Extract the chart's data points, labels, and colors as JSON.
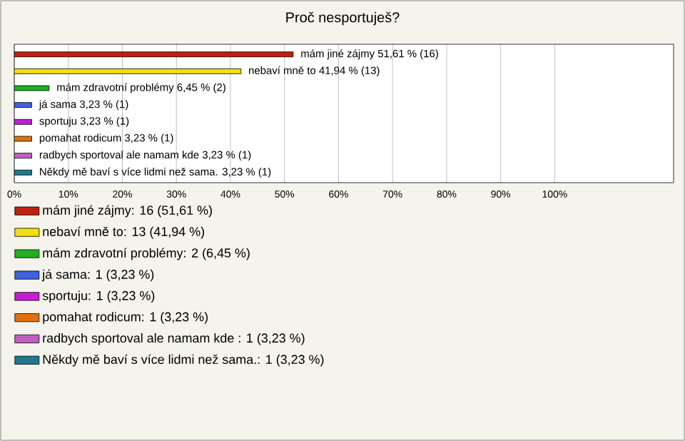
{
  "chart_data": {
    "type": "bar",
    "orientation": "horizontal",
    "title": "Proč nesportuješ?",
    "categories": [
      null,
      null,
      null,
      null,
      null,
      null,
      null,
      null
    ],
    "series": [
      {
        "name": "mám jiné zájmy: 16 (51,61 %)",
        "color": "#c0200e",
        "values": [
          51.61,
          null,
          null,
          null,
          null,
          null,
          null,
          null
        ],
        "value_labels": [
          "mám jiné zájmy 51,61 % (16)",
          null,
          null,
          null,
          null,
          null,
          null,
          null
        ]
      },
      {
        "name": "nebaví mně to: 13 (41,94 %)",
        "color": "#f0e010",
        "values": [
          null,
          41.94,
          null,
          null,
          null,
          null,
          null,
          null
        ],
        "value_labels": [
          null,
          "nebaví mně to 41,94 % (13)",
          null,
          null,
          null,
          null,
          null,
          null
        ]
      },
      {
        "name": "mám zdravotní problémy: 2 (6,45 %)",
        "color": "#20b020",
        "values": [
          null,
          null,
          6.45,
          null,
          null,
          null,
          null,
          null
        ],
        "value_labels": [
          null,
          null,
          "mám zdravotní problémy 6,45 % (2)",
          null,
          null,
          null,
          null,
          null
        ]
      },
      {
        "name": "já sama: 1 (3,23 %)",
        "color": "#4060e0",
        "values": [
          null,
          null,
          null,
          3.23,
          null,
          null,
          null,
          null
        ],
        "value_labels": [
          null,
          null,
          null,
          "já sama 3,23 % (1)",
          null,
          null,
          null,
          null
        ]
      },
      {
        "name": "sportuju: 1 (3,23 %)",
        "color": "#c020d0",
        "values": [
          null,
          null,
          null,
          null,
          3.23,
          null,
          null,
          null
        ],
        "value_labels": [
          null,
          null,
          null,
          null,
          "sportuju 3,23 % (1)",
          null,
          null,
          null
        ]
      },
      {
        "name": "pomahat rodicum: 1 (3,23 %)",
        "color": "#e07010",
        "values": [
          null,
          null,
          null,
          null,
          null,
          3.23,
          null,
          null
        ],
        "value_labels": [
          null,
          null,
          null,
          null,
          null,
          "pomahat rodicum 3,23 % (1)",
          null,
          null
        ]
      },
      {
        "name": "radbych sportoval ale namam kde : 1 (3,23 %)",
        "color": "#c060c0",
        "values": [
          null,
          null,
          null,
          null,
          null,
          null,
          3.23,
          null
        ],
        "value_labels": [
          null,
          null,
          null,
          null,
          null,
          null,
          "radbych sportoval ale namam kde  3,23 % (1)",
          null
        ]
      },
      {
        "name": "Někdy mě baví s více lidmi než sama.: 1 (3,23 %)",
        "color": "#207890",
        "values": [
          null,
          null,
          null,
          null,
          null,
          null,
          null,
          3.23
        ],
        "value_labels": [
          null,
          null,
          null,
          null,
          null,
          null,
          null,
          "Někdy mě baví s více lidmi než sama. 3,23 % (1)"
        ]
      }
    ],
    "xlim": [
      0,
      122
    ],
    "xticks": [
      {
        "value": 0,
        "label": "0%"
      },
      {
        "value": 10,
        "label": "10%"
      },
      {
        "value": 20,
        "label": "20%"
      },
      {
        "value": 30,
        "label": "30%"
      },
      {
        "value": 40,
        "label": "40%"
      },
      {
        "value": 50,
        "label": "50%"
      },
      {
        "value": 60,
        "label": "60%"
      },
      {
        "value": 70,
        "label": "70%"
      },
      {
        "value": 80,
        "label": "80%"
      },
      {
        "value": 90,
        "label": "90%"
      },
      {
        "value": 100,
        "label": "100%"
      }
    ],
    "grid": "x",
    "legend": "bottom"
  }
}
